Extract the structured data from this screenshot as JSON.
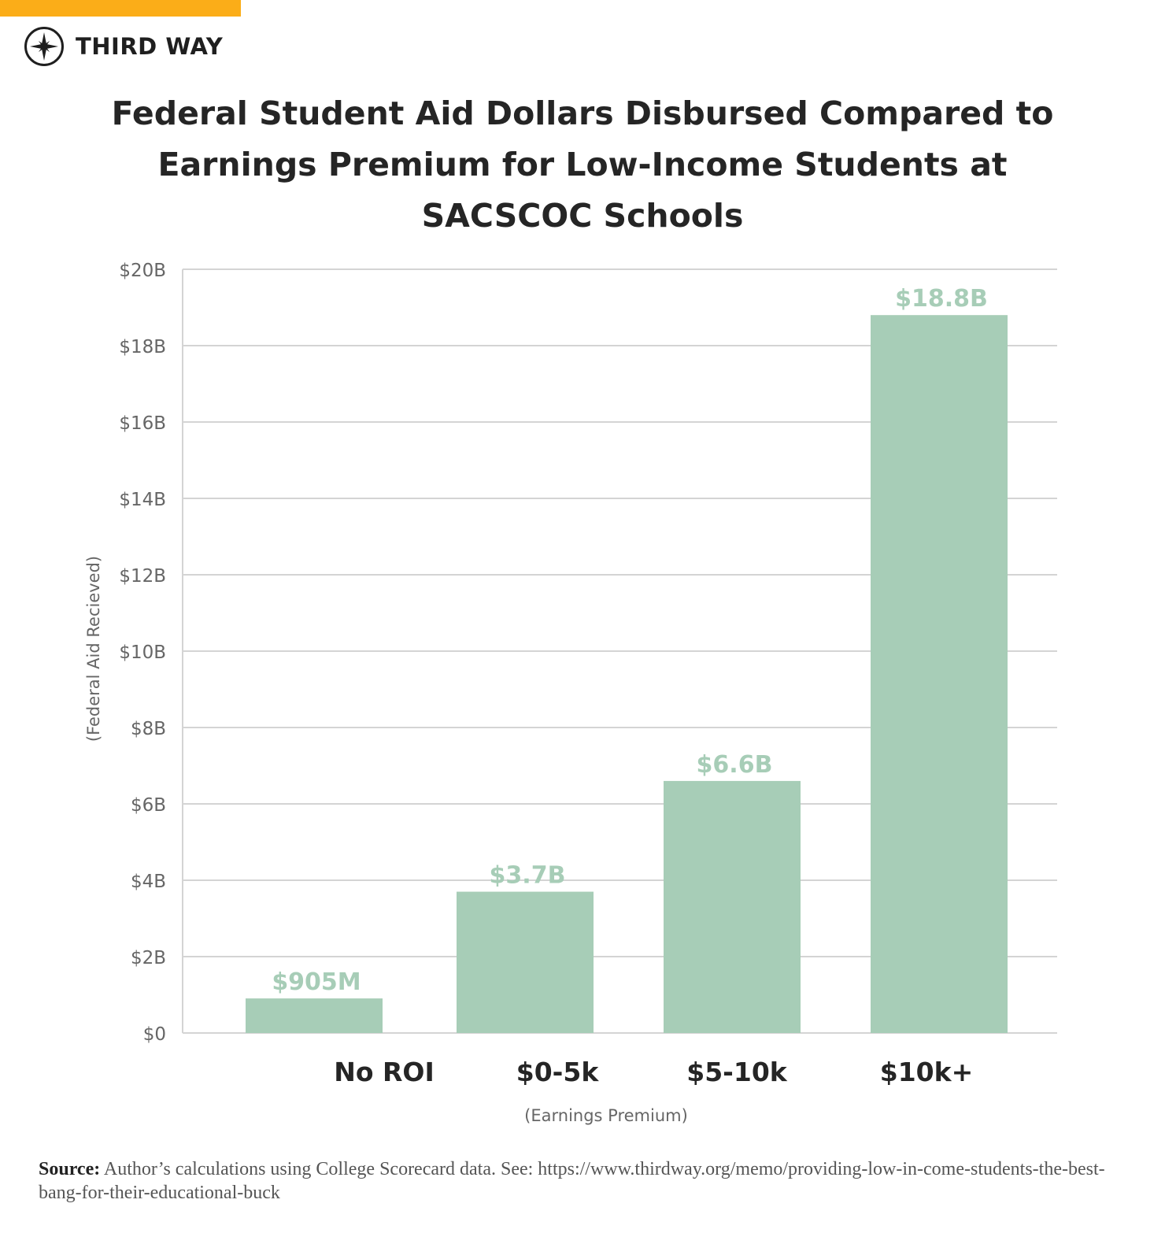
{
  "brand": {
    "name": "THIRD WAY",
    "accent_color": "#fbad18",
    "logo_icon": "compass-star-icon"
  },
  "title_lines": [
    "Federal Student Aid Dollars Disbursed Compared to",
    "Earnings Premium for Low-Income Students at",
    "SACSCOC Schools"
  ],
  "chart_data": {
    "type": "bar",
    "title": "Federal Student Aid Dollars Disbursed Compared to Earnings Premium for Low-Income Students at SACSCOC Schools",
    "xlabel": "(Earnings Premium)",
    "ylabel": "(Federal Aid Recieved)",
    "categories": [
      "No ROI",
      "$0-5k",
      "$5-10k",
      "$10k+"
    ],
    "values": [
      0.905,
      3.7,
      6.6,
      18.8
    ],
    "value_units": "billions of dollars",
    "data_labels": [
      "$905M",
      "$3.7B",
      "$6.6B",
      "$18.8B"
    ],
    "ylim": [
      0,
      20
    ],
    "yticks": [
      0,
      2,
      4,
      6,
      8,
      10,
      12,
      14,
      16,
      18,
      20
    ],
    "ytick_labels": [
      "$0",
      "$2B",
      "$4B",
      "$6B",
      "$8B",
      "$10B",
      "$12B",
      "$14B",
      "$16B",
      "$18B",
      "$20B"
    ],
    "grid": true,
    "legend": "none",
    "bar_color": "#a7cdb7",
    "label_color": "#a7cdb7",
    "grid_color": "#d4d4d4"
  },
  "source": {
    "label": "Source:",
    "text": " Author’s calculations using College Scorecard data. See: https://www.thirdway.org/memo/providing-low-in-come-students-the-best-bang-for-their-educational-buck"
  }
}
